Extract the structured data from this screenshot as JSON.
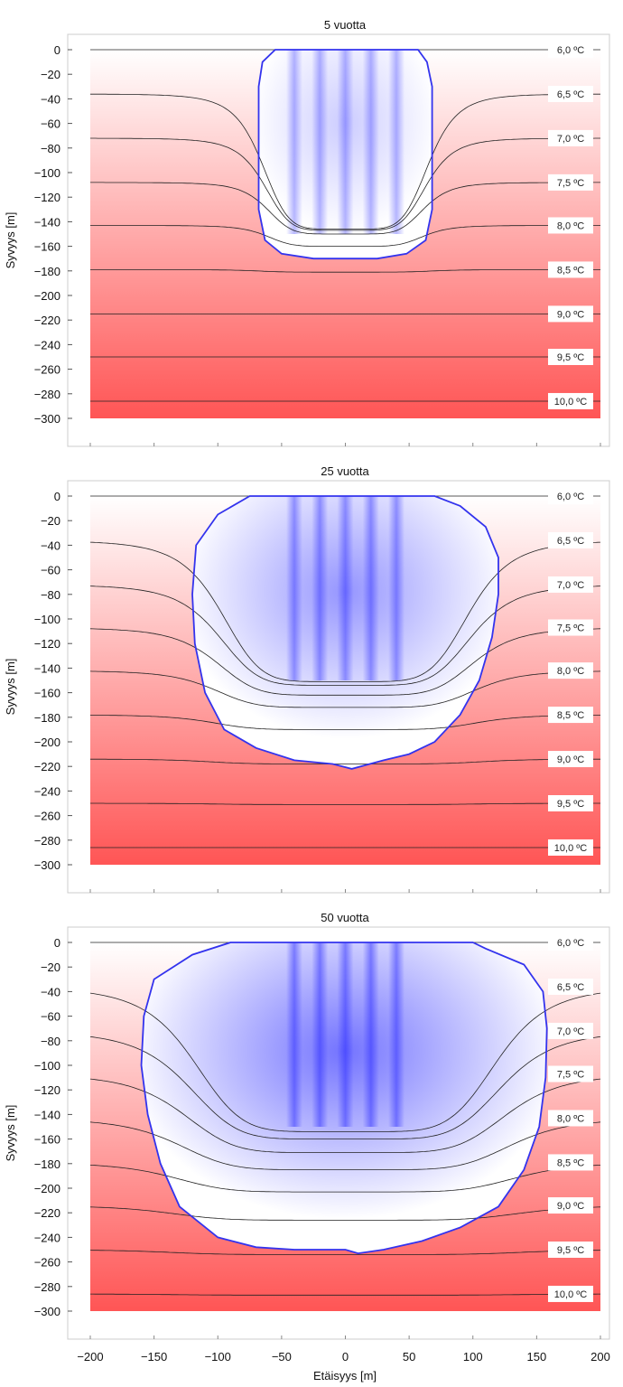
{
  "chart_data": [
    {
      "type": "heatmap",
      "title": "5 vuotta",
      "ylabel": "Syvyys [m]",
      "xlim": [
        -200,
        200
      ],
      "ylim": [
        -300,
        0
      ],
      "yticks": [
        0,
        -20,
        -40,
        -60,
        -80,
        -100,
        -120,
        -140,
        -160,
        -180,
        -200,
        -220,
        -240,
        -260,
        -280,
        -300
      ],
      "isotherm_labels": [
        "6,0 ºC",
        "6,5 ºC",
        "7,0 ºC",
        "7,5 ºC",
        "8,0 ºC",
        "8,5 ºC",
        "9,0 ºC",
        "9,5 ºC",
        "10,0 ºC"
      ],
      "isotherms": [
        {
          "temp": 6.0,
          "depth": 0,
          "dip": 0,
          "halfwidth": 0
        },
        {
          "temp": 6.5,
          "depth": -36,
          "dip": 110,
          "halfwidth": 66
        },
        {
          "temp": 7.0,
          "depth": -72,
          "dip": 75,
          "halfwidth": 64
        },
        {
          "temp": 7.5,
          "depth": -108,
          "dip": 42,
          "halfwidth": 62
        },
        {
          "temp": 8.0,
          "depth": -143,
          "dip": 17,
          "halfwidth": 62
        },
        {
          "temp": 8.5,
          "depth": -179,
          "dip": 2,
          "halfwidth": 70
        },
        {
          "temp": 9.0,
          "depth": -215,
          "dip": 0,
          "halfwidth": 0
        },
        {
          "temp": 9.5,
          "depth": -250,
          "dip": 0,
          "halfwidth": 0
        },
        {
          "temp": 10.0,
          "depth": -286,
          "dip": 0,
          "halfwidth": 0
        }
      ],
      "cold_zone_boundary": [
        [
          -55,
          0
        ],
        [
          -65,
          -10
        ],
        [
          -68,
          -30
        ],
        [
          -68,
          -130
        ],
        [
          -63,
          -155
        ],
        [
          -50,
          -166
        ],
        [
          -25,
          -170
        ],
        [
          0,
          -170
        ],
        [
          25,
          -170
        ],
        [
          48,
          -166
        ],
        [
          63,
          -155
        ],
        [
          68,
          -130
        ],
        [
          68,
          -30
        ],
        [
          64,
          -10
        ],
        [
          57,
          0
        ]
      ],
      "boreholes_x": [
        -40,
        -20,
        0,
        20,
        40
      ],
      "borehole_depth": -150,
      "cold_intensity": 0.35
    },
    {
      "type": "heatmap",
      "title": "25 vuotta",
      "ylabel": "Syvyys [m]",
      "xlim": [
        -200,
        200
      ],
      "ylim": [
        -300,
        0
      ],
      "yticks": [
        0,
        -20,
        -40,
        -60,
        -80,
        -100,
        -120,
        -140,
        -160,
        -180,
        -200,
        -220,
        -240,
        -260,
        -280,
        -300
      ],
      "isotherm_labels": [
        "6,0 ºC",
        "6,5 ºC",
        "7,0 ºC",
        "7,5 ºC",
        "8,0 ºC",
        "8,5 ºC",
        "9,0 ºC",
        "9,5 ºC",
        "10,0 ºC"
      ],
      "isotherms": [
        {
          "temp": 6.0,
          "depth": 0,
          "dip": 0,
          "halfwidth": 0
        },
        {
          "temp": 6.5,
          "depth": -36,
          "dip": 115,
          "halfwidth": 98
        },
        {
          "temp": 7.0,
          "depth": -72,
          "dip": 82,
          "halfwidth": 100
        },
        {
          "temp": 7.5,
          "depth": -107,
          "dip": 55,
          "halfwidth": 102
        },
        {
          "temp": 8.0,
          "depth": -142,
          "dip": 30,
          "halfwidth": 104
        },
        {
          "temp": 8.5,
          "depth": -178,
          "dip": 12,
          "halfwidth": 106
        },
        {
          "temp": 9.0,
          "depth": -214,
          "dip": 4,
          "halfwidth": 110
        },
        {
          "temp": 9.5,
          "depth": -250,
          "dip": 1,
          "halfwidth": 110
        },
        {
          "temp": 10.0,
          "depth": -286,
          "dip": 0,
          "halfwidth": 0
        }
      ],
      "cold_zone_boundary": [
        [
          -75,
          0
        ],
        [
          -100,
          -15
        ],
        [
          -117,
          -40
        ],
        [
          -120,
          -80
        ],
        [
          -118,
          -120
        ],
        [
          -110,
          -160
        ],
        [
          -95,
          -190
        ],
        [
          -70,
          -205
        ],
        [
          -40,
          -215
        ],
        [
          -10,
          -218
        ],
        [
          5,
          -222
        ],
        [
          30,
          -215
        ],
        [
          50,
          -210
        ],
        [
          70,
          -200
        ],
        [
          90,
          -178
        ],
        [
          105,
          -150
        ],
        [
          115,
          -115
        ],
        [
          120,
          -80
        ],
        [
          120,
          -50
        ],
        [
          110,
          -25
        ],
        [
          90,
          -8
        ],
        [
          70,
          0
        ]
      ],
      "boreholes_x": [
        -40,
        -20,
        0,
        20,
        40
      ],
      "borehole_depth": -150,
      "cold_intensity": 0.72
    },
    {
      "type": "heatmap",
      "title": "50 vuotta",
      "ylabel": "Syvyys [m]",
      "xlabel": "Etäisyys [m]",
      "xlim": [
        -200,
        200
      ],
      "ylim": [
        -300,
        0
      ],
      "xticks": [
        -200,
        -150,
        -100,
        -50,
        0,
        50,
        100,
        150,
        200
      ],
      "yticks": [
        0,
        -20,
        -40,
        -60,
        -80,
        -100,
        -120,
        -140,
        -160,
        -180,
        -200,
        -220,
        -240,
        -260,
        -280,
        -300
      ],
      "isotherm_labels": [
        "6,0 ºC",
        "6,5 ºC",
        "7,0 ºC",
        "7,5 ºC",
        "8,0 ºC",
        "8,5 ºC",
        "9,0 ºC",
        "9,5 ºC",
        "10,0 ºC"
      ],
      "isotherms": [
        {
          "temp": 6.0,
          "depth": 0,
          "dip": 0,
          "halfwidth": 0
        },
        {
          "temp": 6.5,
          "depth": -36,
          "dip": 118,
          "halfwidth": 120
        },
        {
          "temp": 7.0,
          "depth": -72,
          "dip": 88,
          "halfwidth": 124
        },
        {
          "temp": 7.5,
          "depth": -107,
          "dip": 64,
          "halfwidth": 128
        },
        {
          "temp": 8.0,
          "depth": -143,
          "dip": 42,
          "halfwidth": 132
        },
        {
          "temp": 8.5,
          "depth": -179,
          "dip": 24,
          "halfwidth": 136
        },
        {
          "temp": 9.0,
          "depth": -214,
          "dip": 12,
          "halfwidth": 140
        },
        {
          "temp": 9.5,
          "depth": -250,
          "dip": 4,
          "halfwidth": 142
        },
        {
          "temp": 10.0,
          "depth": -286,
          "dip": 1,
          "halfwidth": 145
        }
      ],
      "cold_zone_boundary": [
        [
          -90,
          0
        ],
        [
          -120,
          -10
        ],
        [
          -150,
          -30
        ],
        [
          -158,
          -60
        ],
        [
          -160,
          -100
        ],
        [
          -155,
          -140
        ],
        [
          -145,
          -180
        ],
        [
          -130,
          -215
        ],
        [
          -100,
          -240
        ],
        [
          -70,
          -248
        ],
        [
          -40,
          -250
        ],
        [
          0,
          -250
        ],
        [
          10,
          -253
        ],
        [
          30,
          -250
        ],
        [
          60,
          -243
        ],
        [
          90,
          -232
        ],
        [
          120,
          -215
        ],
        [
          140,
          -185
        ],
        [
          152,
          -150
        ],
        [
          157,
          -110
        ],
        [
          158,
          -70
        ],
        [
          155,
          -40
        ],
        [
          140,
          -18
        ],
        [
          110,
          -5
        ],
        [
          100,
          0
        ]
      ],
      "boreholes_x": [
        -40,
        -20,
        0,
        20,
        40
      ],
      "borehole_depth": -150,
      "cold_intensity": 0.95
    }
  ]
}
